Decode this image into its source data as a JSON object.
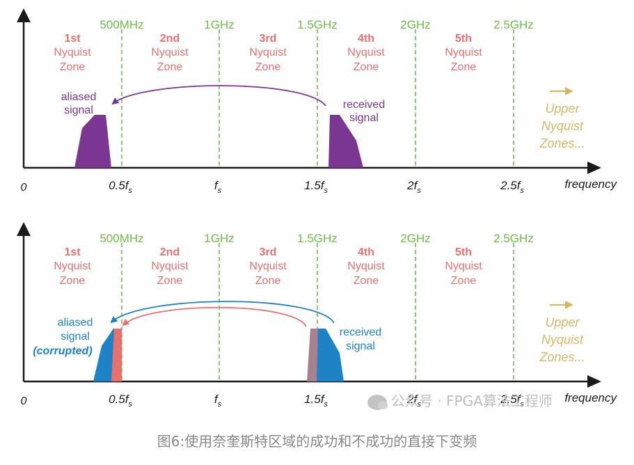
{
  "colors": {
    "axis": "#1a1a1a",
    "frequency_label": "#6bbf45",
    "zone_label": "#e8706f",
    "boundary_line": "#5fae3c",
    "purple": "#7b3593",
    "blue": "#1d82c6",
    "red": "#e8706f",
    "mauve": "#a7818f",
    "upper_zones": "#d8b865"
  },
  "frequency_labels": [
    "500MHz",
    "1GHz",
    "1.5GHz",
    "2GHz",
    "2.5GHz"
  ],
  "zones": [
    {
      "ordinal": "1st",
      "line2": "Nyquist",
      "line3": "Zone"
    },
    {
      "ordinal": "2nd",
      "line2": "Nyquist",
      "line3": "Zone"
    },
    {
      "ordinal": "3rd",
      "line2": "Nyquist",
      "line3": "Zone"
    },
    {
      "ordinal": "4th",
      "line2": "Nyquist",
      "line3": "Zone"
    },
    {
      "ordinal": "5th",
      "line2": "Nyquist",
      "line3": "Zone"
    }
  ],
  "axis": {
    "origin_label": "0",
    "ticks": [
      {
        "main": "0.5f",
        "sub": "s"
      },
      {
        "main": "f",
        "sub": "s"
      },
      {
        "main": "1.5f",
        "sub": "s"
      },
      {
        "main": "2f",
        "sub": "s"
      },
      {
        "main": "2.5f",
        "sub": "s"
      }
    ],
    "xlabel": "frequency"
  },
  "upper_zones": [
    "Upper",
    "Nyquist",
    "Zones..."
  ],
  "panel_top": {
    "aliased_label": [
      "aliased",
      "signal"
    ],
    "received_label": [
      "received",
      "signal"
    ]
  },
  "panel_bottom": {
    "aliased_label": [
      "aliased",
      "signal",
      "(corrupted)"
    ],
    "received_label": [
      "received",
      "signal"
    ]
  },
  "watermark": "公众号 · FPGA算法工程师",
  "caption": "图6:使用奈奎斯特区域的成功和不成功的直接下变频"
}
